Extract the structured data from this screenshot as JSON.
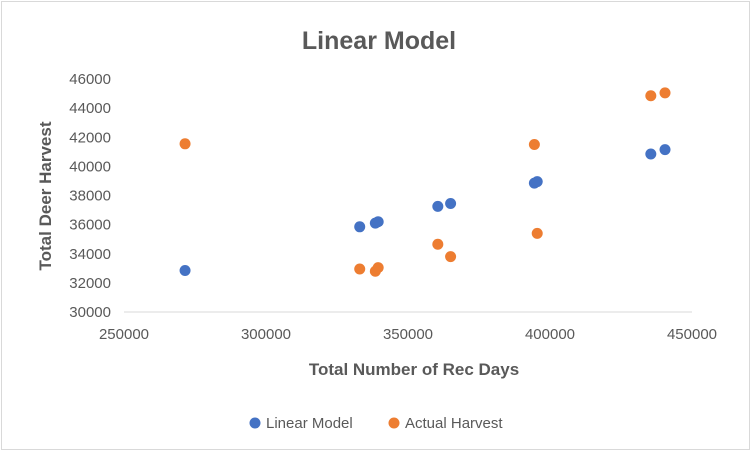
{
  "chart_data": {
    "type": "scatter",
    "title": "Linear Model",
    "xlabel": "Total Number of Rec Days",
    "ylabel": "Total Deer Harvest",
    "xlim": [
      250000,
      450000
    ],
    "ylim": [
      30000,
      46000
    ],
    "xticks": [
      250000,
      300000,
      350000,
      400000,
      450000
    ],
    "yticks": [
      30000,
      32000,
      34000,
      36000,
      38000,
      40000,
      42000,
      44000,
      46000
    ],
    "grid": false,
    "legend_position": "bottom",
    "series": [
      {
        "name": "Linear Model",
        "color": "#4472c4",
        "points": [
          {
            "x": 271500,
            "y": 32850
          },
          {
            "x": 333000,
            "y": 35850
          },
          {
            "x": 338500,
            "y": 36100
          },
          {
            "x": 339500,
            "y": 36200
          },
          {
            "x": 360500,
            "y": 37250
          },
          {
            "x": 365000,
            "y": 37450
          },
          {
            "x": 394500,
            "y": 38850
          },
          {
            "x": 395500,
            "y": 38950
          },
          {
            "x": 435500,
            "y": 40850
          },
          {
            "x": 440500,
            "y": 41150
          }
        ]
      },
      {
        "name": "Actual Harvest",
        "color": "#ed7d31",
        "points": [
          {
            "x": 271500,
            "y": 41550
          },
          {
            "x": 333000,
            "y": 32950
          },
          {
            "x": 338500,
            "y": 32800
          },
          {
            "x": 339500,
            "y": 33050
          },
          {
            "x": 360500,
            "y": 34650
          },
          {
            "x": 365000,
            "y": 33800
          },
          {
            "x": 394500,
            "y": 41500
          },
          {
            "x": 395500,
            "y": 35400
          },
          {
            "x": 435500,
            "y": 44850
          },
          {
            "x": 440500,
            "y": 45050
          }
        ]
      }
    ]
  }
}
